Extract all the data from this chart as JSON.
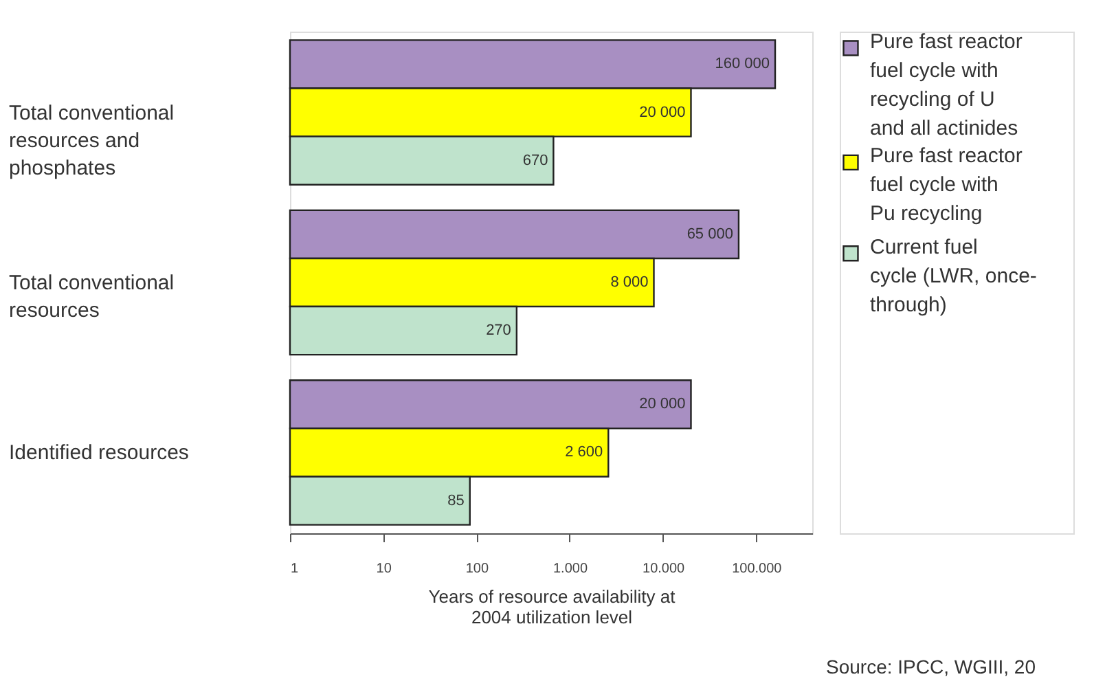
{
  "chart_data": {
    "type": "bar",
    "orientation": "horizontal",
    "log": "x",
    "xlabel": "Years of resource availability at 2004 utilization level",
    "categories": [
      "Total conventional resources and phosphates",
      "Total conventional resources",
      "Identified resources"
    ],
    "series": [
      {
        "name": "Pure fast reactor fuel cycle with recycling of U and all actinides",
        "color": "#a88fc2",
        "values": [
          160000,
          65000,
          20000
        ],
        "value_labels": [
          "160 000",
          "65 000",
          "20 000"
        ]
      },
      {
        "name": "Pure fast reactor fuel cycle with Pu recycling",
        "color": "#ffff00",
        "values": [
          20000,
          8000,
          2600
        ],
        "value_labels": [
          "20 000",
          "8 000",
          "2 600"
        ]
      },
      {
        "name": "Current fuel cycle (LWR, once-through)",
        "color": "#bfe3cc",
        "values": [
          670,
          270,
          85
        ],
        "value_labels": [
          "670",
          "270",
          "85"
        ]
      }
    ],
    "xlim": [
      1,
      400000
    ],
    "xticks": [
      1,
      10,
      100,
      {
        "value": 1000,
        "label": "1.000"
      },
      {
        "value": 10000,
        "label": "10.000"
      },
      {
        "value": 100000,
        "label": "100.000"
      }
    ],
    "grid": false,
    "legend": "right",
    "annotations": [
      "Source: IPCC, WGIII, 20"
    ]
  }
}
